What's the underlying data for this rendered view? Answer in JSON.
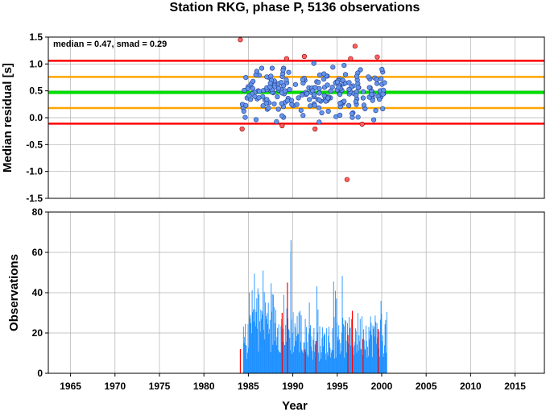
{
  "title": "Station RKG, phase P, 5136 observations",
  "chart_data": [
    {
      "type": "scatter",
      "annotation": "median = 0.47, smad = 0.29",
      "ylabel": "Median residual [s]",
      "xlim": [
        1962.5,
        2018.3
      ],
      "ylim": [
        -1.5,
        1.5
      ],
      "yticks": [
        -1.5,
        -1.0,
        -0.5,
        0.0,
        0.5,
        1.0,
        1.5
      ],
      "ytick_labels": [
        "-1.5",
        "-1.0",
        "-0.5",
        "0.0",
        "0.5",
        "1.0",
        "1.5"
      ],
      "grid": true,
      "reference_lines": [
        {
          "y": 1.06,
          "color": "#ff0000"
        },
        {
          "y": 0.76,
          "color": "#ffa500"
        },
        {
          "y": 0.47,
          "color": "#00dd00"
        },
        {
          "y": 0.18,
          "color": "#ffa500"
        },
        {
          "y": -0.11,
          "color": "#ff0000"
        }
      ],
      "inlier_color": "#6495ed",
      "outlier_color": "#ff6060",
      "outliers": [
        {
          "x": 1984.1,
          "y": 1.45
        },
        {
          "x": 1984.3,
          "y": -0.21
        },
        {
          "x": 1988.8,
          "y": -0.15
        },
        {
          "x": 1989.3,
          "y": 1.1
        },
        {
          "x": 1991.3,
          "y": 1.14
        },
        {
          "x": 1992.5,
          "y": -0.21
        },
        {
          "x": 1996.1,
          "y": -1.15
        },
        {
          "x": 1996.5,
          "y": 1.1
        },
        {
          "x": 1997.0,
          "y": 1.33
        },
        {
          "x": 1997.8,
          "y": -0.12
        },
        {
          "x": 1999.5,
          "y": 1.13
        }
      ]
    },
    {
      "type": "bar",
      "xlabel": "Year",
      "ylabel": "Observations",
      "xlim": [
        1962.5,
        2018.3
      ],
      "ylim": [
        0,
        80
      ],
      "yticks": [
        0,
        20,
        40,
        60,
        80
      ],
      "xticks": [
        1965,
        1970,
        1975,
        1980,
        1985,
        1990,
        1995,
        2000,
        2005,
        2010,
        2015
      ],
      "grid": true,
      "bar_color": "#1e90ff",
      "highlight_color": "#ff0000",
      "data_range": [
        1984.0,
        2000.6
      ],
      "peak": {
        "x": 1989.8,
        "y": 66
      },
      "highlighted_bars": [
        {
          "x": 1984.1,
          "y": 12
        },
        {
          "x": 1988.8,
          "y": 30
        },
        {
          "x": 1989.4,
          "y": 45
        },
        {
          "x": 1991.4,
          "y": 12
        },
        {
          "x": 1992.6,
          "y": 16
        },
        {
          "x": 1996.2,
          "y": 19
        },
        {
          "x": 1996.7,
          "y": 31
        },
        {
          "x": 1997.9,
          "y": 17
        },
        {
          "x": 1999.6,
          "y": 22
        }
      ]
    }
  ]
}
